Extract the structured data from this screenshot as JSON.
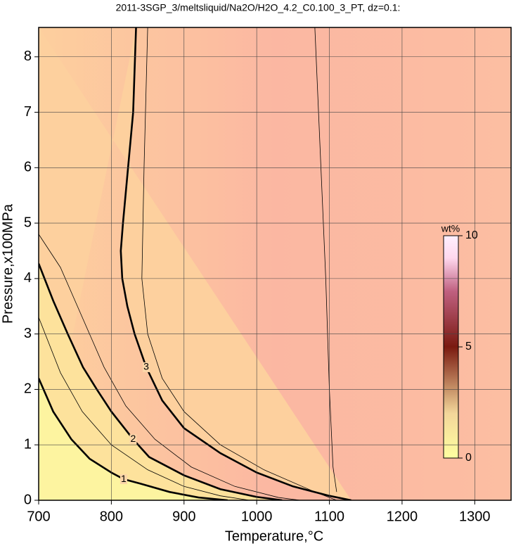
{
  "chart_data": {
    "type": "contour",
    "title": "2011-3SGP_3/meltsliquid/Na2O/H2O_4.2_C0.100_3_PT, dz=0.1:",
    "xlabel": "Temperature,°C",
    "ylabel": "Pressure,x100MPa",
    "xlim": [
      700,
      1350
    ],
    "ylim": [
      0,
      8.53
    ],
    "xticks": [
      700,
      800,
      900,
      1000,
      1100,
      1200,
      1300
    ],
    "yticks": [
      0,
      1,
      2,
      3,
      4,
      5,
      6,
      7,
      8
    ],
    "grid": true,
    "contours": [
      {
        "level": 1,
        "bold": true,
        "x": [
          700,
          720,
          745,
          770,
          800,
          817,
          840,
          880,
          920,
          960
        ],
        "values": [
          2.2,
          1.6,
          1.1,
          0.75,
          0.5,
          0.38,
          0.3,
          0.15,
          0.05,
          0
        ]
      },
      {
        "level": 1.5,
        "bold": false,
        "x": [
          700,
          730,
          760,
          800,
          850,
          900,
          950,
          990
        ],
        "values": [
          3.3,
          2.3,
          1.6,
          1.0,
          0.55,
          0.25,
          0.08,
          0
        ]
      },
      {
        "level": 2,
        "bold": true,
        "x": [
          700,
          720,
          740,
          761,
          780,
          800,
          830,
          852,
          900,
          950,
          1000,
          1035
        ],
        "values": [
          4.27,
          3.6,
          3.0,
          2.4,
          2.0,
          1.6,
          1.1,
          0.78,
          0.45,
          0.2,
          0.06,
          0
        ]
      },
      {
        "level": 2.5,
        "bold": false,
        "x": [
          700,
          730,
          760,
          790,
          820,
          860,
          910,
          970,
          1030,
          1060
        ],
        "values": [
          4.8,
          4.2,
          3.3,
          2.4,
          1.7,
          1.1,
          0.6,
          0.25,
          0.05,
          0
        ]
      },
      {
        "level": 3,
        "bold": true,
        "x": [
          834,
          830,
          823,
          816,
          813,
          815,
          822,
          832,
          848,
          870,
          900,
          950,
          1000,
          1050,
          1100,
          1130
        ],
        "values": [
          8.53,
          7,
          6,
          5,
          4.5,
          4,
          3.5,
          3,
          2.4,
          1.8,
          1.3,
          0.85,
          0.5,
          0.25,
          0.08,
          0
        ]
      },
      {
        "level": 3.5,
        "bold": false,
        "x": [
          850,
          845,
          842,
          850,
          870,
          900,
          950,
          1010,
          1080,
          1110
        ],
        "values": [
          8.53,
          6,
          4,
          3,
          2.2,
          1.6,
          1.0,
          0.55,
          0.15,
          0
        ]
      },
      {
        "level": 3.8,
        "bold": false,
        "x": [
          1080,
          1095,
          1100,
          1105,
          1110
        ],
        "values": [
          8.53,
          4,
          2,
          0.6,
          0.15
        ]
      }
    ],
    "colorbar": {
      "label": "wt%",
      "lim": [
        0,
        10
      ],
      "ticks": [
        0,
        5,
        10
      ]
    }
  }
}
